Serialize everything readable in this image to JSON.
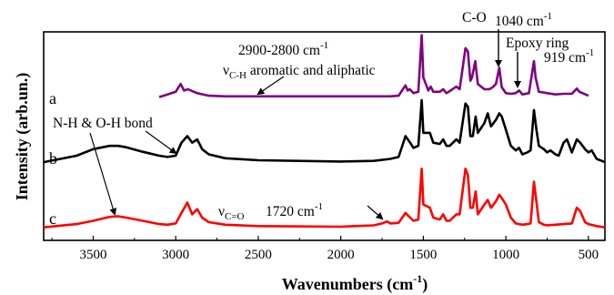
{
  "chart_data": {
    "type": "line",
    "xlabel": "Wavenumbers (cm",
    "xlabel_sup": "-1",
    "xlabel_close": ")",
    "ylabel": "Intensity (arb.un.)",
    "xlim": [
      3800,
      400
    ],
    "x_reversed": true,
    "ylim": [
      0,
      3.2
    ],
    "x_ticks": [
      3500,
      3000,
      2500,
      2000,
      1500,
      1000,
      500
    ],
    "y_ticks_labeled": false,
    "grid": false,
    "series": [
      {
        "name": "a",
        "color": "#800080",
        "offset": 2.2,
        "x_range": [
          3100,
          500
        ],
        "points": [
          [
            3100,
            0.0
          ],
          [
            3050,
            0.04
          ],
          [
            3000,
            0.08
          ],
          [
            2970,
            0.2
          ],
          [
            2950,
            0.1
          ],
          [
            2925,
            0.12
          ],
          [
            2900,
            0.09
          ],
          [
            2870,
            0.06
          ],
          [
            2800,
            0.02
          ],
          [
            2700,
            0.01
          ],
          [
            1700,
            0.01
          ],
          [
            1650,
            0.02
          ],
          [
            1608,
            0.18
          ],
          [
            1595,
            0.1
          ],
          [
            1582,
            0.12
          ],
          [
            1560,
            0.06
          ],
          [
            1530,
            0.08
          ],
          [
            1510,
            0.95
          ],
          [
            1500,
            0.3
          ],
          [
            1470,
            0.1
          ],
          [
            1455,
            0.16
          ],
          [
            1440,
            0.08
          ],
          [
            1400,
            0.08
          ],
          [
            1380,
            0.12
          ],
          [
            1360,
            0.06
          ],
          [
            1340,
            0.09
          ],
          [
            1300,
            0.16
          ],
          [
            1280,
            0.12
          ],
          [
            1245,
            0.75
          ],
          [
            1230,
            0.7
          ],
          [
            1215,
            0.25
          ],
          [
            1205,
            0.3
          ],
          [
            1185,
            0.55
          ],
          [
            1170,
            0.2
          ],
          [
            1130,
            0.12
          ],
          [
            1100,
            0.12
          ],
          [
            1080,
            0.15
          ],
          [
            1060,
            0.2
          ],
          [
            1040,
            0.45
          ],
          [
            1025,
            0.15
          ],
          [
            1000,
            0.06
          ],
          [
            970,
            0.05
          ],
          [
            940,
            0.06
          ],
          [
            920,
            0.1
          ],
          [
            900,
            0.04
          ],
          [
            860,
            0.06
          ],
          [
            830,
            0.55
          ],
          [
            820,
            0.3
          ],
          [
            800,
            0.08
          ],
          [
            770,
            0.07
          ],
          [
            750,
            0.06
          ],
          [
            700,
            0.04
          ],
          [
            650,
            0.05
          ],
          [
            600,
            0.05
          ],
          [
            570,
            0.13
          ],
          [
            555,
            0.08
          ],
          [
            500,
            0.02
          ]
        ]
      },
      {
        "name": "b",
        "color": "#000000",
        "offset": 1.2,
        "x_range": [
          3800,
          400
        ],
        "points": [
          [
            3800,
            0.0
          ],
          [
            3600,
            0.1
          ],
          [
            3500,
            0.2
          ],
          [
            3400,
            0.25
          ],
          [
            3350,
            0.25
          ],
          [
            3300,
            0.23
          ],
          [
            3200,
            0.16
          ],
          [
            3100,
            0.1
          ],
          [
            3050,
            0.08
          ],
          [
            3000,
            0.1
          ],
          [
            2965,
            0.3
          ],
          [
            2930,
            0.4
          ],
          [
            2900,
            0.3
          ],
          [
            2870,
            0.35
          ],
          [
            2840,
            0.2
          ],
          [
            2800,
            0.12
          ],
          [
            2700,
            0.06
          ],
          [
            2500,
            0.03
          ],
          [
            2000,
            0.01
          ],
          [
            1800,
            0.02
          ],
          [
            1700,
            0.05
          ],
          [
            1650,
            0.08
          ],
          [
            1608,
            0.4
          ],
          [
            1580,
            0.3
          ],
          [
            1560,
            0.22
          ],
          [
            1530,
            0.25
          ],
          [
            1510,
            0.95
          ],
          [
            1500,
            0.45
          ],
          [
            1460,
            0.45
          ],
          [
            1440,
            0.3
          ],
          [
            1400,
            0.28
          ],
          [
            1380,
            0.35
          ],
          [
            1360,
            0.25
          ],
          [
            1340,
            0.25
          ],
          [
            1300,
            0.35
          ],
          [
            1280,
            0.3
          ],
          [
            1245,
            0.9
          ],
          [
            1230,
            0.85
          ],
          [
            1215,
            0.4
          ],
          [
            1200,
            0.4
          ],
          [
            1183,
            0.7
          ],
          [
            1170,
            0.45
          ],
          [
            1130,
            0.6
          ],
          [
            1110,
            0.75
          ],
          [
            1090,
            0.55
          ],
          [
            1060,
            0.65
          ],
          [
            1040,
            0.75
          ],
          [
            1025,
            0.7
          ],
          [
            1000,
            0.5
          ],
          [
            970,
            0.25
          ],
          [
            940,
            0.18
          ],
          [
            920,
            0.22
          ],
          [
            900,
            0.12
          ],
          [
            870,
            0.15
          ],
          [
            850,
            0.18
          ],
          [
            830,
            0.8
          ],
          [
            815,
            0.5
          ],
          [
            800,
            0.25
          ],
          [
            770,
            0.2
          ],
          [
            750,
            0.15
          ],
          [
            730,
            0.18
          ],
          [
            700,
            0.12
          ],
          [
            680,
            0.1
          ],
          [
            650,
            0.3
          ],
          [
            630,
            0.35
          ],
          [
            600,
            0.15
          ],
          [
            570,
            0.35
          ],
          [
            550,
            0.3
          ],
          [
            520,
            0.2
          ],
          [
            500,
            0.15
          ],
          [
            480,
            0.18
          ],
          [
            450,
            0.05
          ],
          [
            400,
            0.0
          ]
        ]
      },
      {
        "name": "c",
        "color": "#ff0000",
        "offset": 0.2,
        "x_range": [
          3800,
          400
        ],
        "points": [
          [
            3800,
            0.0
          ],
          [
            3600,
            0.05
          ],
          [
            3500,
            0.1
          ],
          [
            3400,
            0.16
          ],
          [
            3350,
            0.17
          ],
          [
            3300,
            0.15
          ],
          [
            3200,
            0.1
          ],
          [
            3100,
            0.05
          ],
          [
            3050,
            0.04
          ],
          [
            3000,
            0.06
          ],
          [
            2965,
            0.22
          ],
          [
            2930,
            0.38
          ],
          [
            2900,
            0.2
          ],
          [
            2870,
            0.28
          ],
          [
            2840,
            0.15
          ],
          [
            2800,
            0.08
          ],
          [
            2700,
            0.04
          ],
          [
            2500,
            0.02
          ],
          [
            2000,
            0.01
          ],
          [
            1800,
            0.03
          ],
          [
            1750,
            0.06
          ],
          [
            1720,
            0.09
          ],
          [
            1700,
            0.06
          ],
          [
            1650,
            0.07
          ],
          [
            1608,
            0.22
          ],
          [
            1580,
            0.15
          ],
          [
            1560,
            0.1
          ],
          [
            1530,
            0.12
          ],
          [
            1510,
            0.9
          ],
          [
            1500,
            0.35
          ],
          [
            1460,
            0.3
          ],
          [
            1440,
            0.15
          ],
          [
            1400,
            0.12
          ],
          [
            1380,
            0.2
          ],
          [
            1360,
            0.1
          ],
          [
            1340,
            0.1
          ],
          [
            1300,
            0.2
          ],
          [
            1280,
            0.2
          ],
          [
            1245,
            0.9
          ],
          [
            1230,
            0.8
          ],
          [
            1215,
            0.3
          ],
          [
            1200,
            0.3
          ],
          [
            1183,
            0.55
          ],
          [
            1170,
            0.2
          ],
          [
            1130,
            0.35
          ],
          [
            1110,
            0.42
          ],
          [
            1090,
            0.3
          ],
          [
            1060,
            0.4
          ],
          [
            1040,
            0.5
          ],
          [
            1025,
            0.45
          ],
          [
            1000,
            0.35
          ],
          [
            970,
            0.15
          ],
          [
            940,
            0.06
          ],
          [
            920,
            0.05
          ],
          [
            900,
            0.04
          ],
          [
            870,
            0.05
          ],
          [
            850,
            0.06
          ],
          [
            830,
            0.7
          ],
          [
            815,
            0.4
          ],
          [
            800,
            0.08
          ],
          [
            770,
            0.04
          ],
          [
            750,
            0.03
          ],
          [
            700,
            0.04
          ],
          [
            650,
            0.05
          ],
          [
            600,
            0.06
          ],
          [
            570,
            0.3
          ],
          [
            550,
            0.25
          ],
          [
            520,
            0.08
          ],
          [
            500,
            0.05
          ],
          [
            450,
            0.02
          ],
          [
            400,
            0.0
          ]
        ]
      }
    ],
    "trace_labels": [
      "a",
      "b",
      "c"
    ],
    "annotations": {
      "ch_range": "2900-2800 cm",
      "ch_range_sup": "-1",
      "nu_ch": "ν",
      "nu_ch_sub": "C-H",
      "nu_ch_text": " aromatic and aliphatic",
      "co": "C-O",
      "co_wn": "1040 cm",
      "co_wn_sup": "-1",
      "epoxy": "Epoxy ring",
      "epoxy_wn": "919 cm",
      "epoxy_wn_sup": "-1",
      "nh_oh": "N-H & O-H bond",
      "nu_co": "ν",
      "nu_co_sub": "C=O",
      "co_1720": "1720  cm",
      "co_1720_sup": "-1"
    }
  }
}
